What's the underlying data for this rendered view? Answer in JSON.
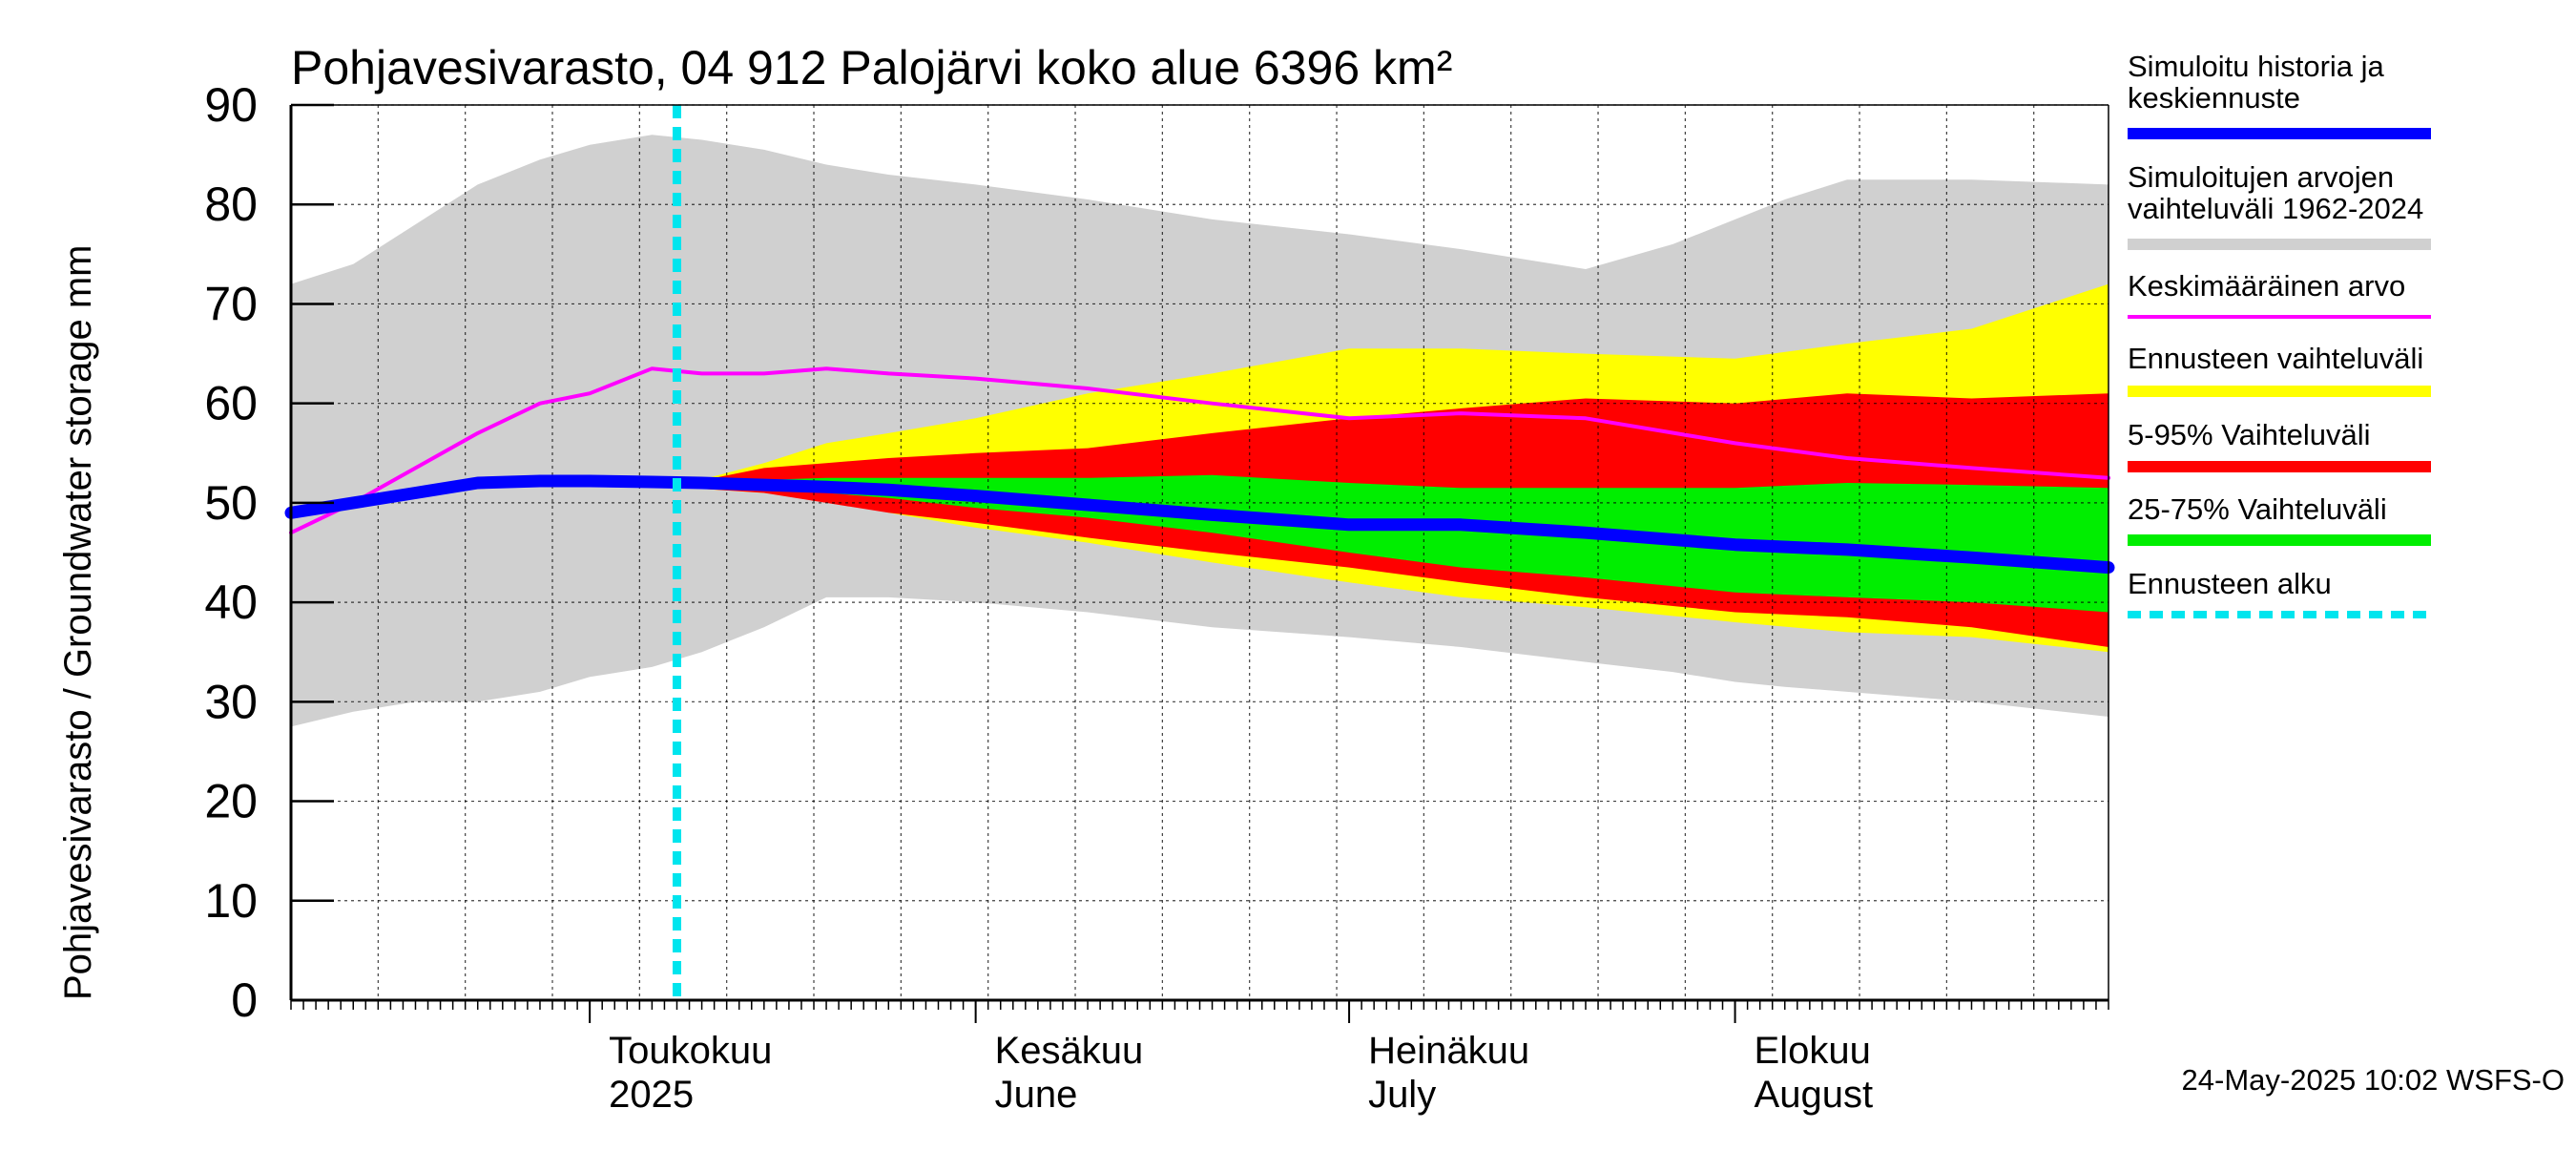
{
  "chart_data": {
    "type": "area",
    "title": "Pohjavesivarasto, 04 912 Palojärvi koko alue 6396 km²",
    "ylabel": "Pohjavesivarasto / Groundwater storage   mm",
    "ylim": [
      0,
      90
    ],
    "yticks": [
      "0",
      "10",
      "20",
      "30",
      "40",
      "50",
      "60",
      "70",
      "80",
      "90"
    ],
    "xlim": [
      "2025-04-07",
      "2025-08-31"
    ],
    "grid": true,
    "month_labels": [
      {
        "date": "2025-05-01",
        "line1": "Toukokuu",
        "line2": "2025"
      },
      {
        "date": "2025-06-01",
        "line1": "Kesäkuu",
        "line2": "June"
      },
      {
        "date": "2025-07-01",
        "line1": "Heinäkuu",
        "line2": "July"
      },
      {
        "date": "2025-08-01",
        "line1": "Elokuu",
        "line2": "August"
      }
    ],
    "forecast_start": "2025-05-08",
    "series": [
      {
        "name": "Simuloitujen arvojen vaihteluväli 1962-2024",
        "color": "#d0d0d0",
        "x": [
          "2025-04-07",
          "2025-04-12",
          "2025-04-17",
          "2025-04-22",
          "2025-04-27",
          "2025-05-01",
          "2025-05-06",
          "2025-05-10",
          "2025-05-15",
          "2025-05-20",
          "2025-05-25",
          "2025-06-01",
          "2025-06-10",
          "2025-06-20",
          "2025-07-01",
          "2025-07-10",
          "2025-07-20",
          "2025-07-27",
          "2025-08-01",
          "2025-08-05",
          "2025-08-10",
          "2025-08-20",
          "2025-08-31"
        ],
        "upper": [
          72,
          74,
          78,
          82,
          84.5,
          86,
          87,
          86.5,
          85.5,
          84,
          83,
          82,
          80.5,
          78.5,
          77,
          75.5,
          73.5,
          76,
          78.5,
          80.5,
          82.5,
          82.5,
          82
        ],
        "lower": [
          27.5,
          29,
          30,
          30,
          31,
          32.5,
          33.5,
          35,
          37.5,
          40.5,
          40.5,
          40,
          39,
          37.5,
          36.5,
          35.5,
          34,
          33,
          32,
          31.5,
          31,
          30,
          28.5
        ]
      },
      {
        "name": "Ennusteen vaihteluväli",
        "color": "#ffff00",
        "x": [
          "2025-05-09",
          "2025-05-15",
          "2025-05-20",
          "2025-05-25",
          "2025-06-01",
          "2025-06-10",
          "2025-06-20",
          "2025-07-01",
          "2025-07-10",
          "2025-07-20",
          "2025-08-01",
          "2025-08-10",
          "2025-08-20",
          "2025-08-31"
        ],
        "upper": [
          52,
          54,
          56,
          57,
          58.5,
          61,
          63,
          65.5,
          65.5,
          65,
          64.5,
          66,
          67.5,
          72
        ],
        "lower": [
          51.5,
          51,
          50.5,
          49,
          47.5,
          46,
          44,
          42,
          40.5,
          39.5,
          38,
          37,
          36.5,
          35
        ]
      },
      {
        "name": "5-95% Vaihteluväli",
        "color": "#ff0000",
        "x": [
          "2025-05-09",
          "2025-05-15",
          "2025-05-20",
          "2025-05-25",
          "2025-06-01",
          "2025-06-10",
          "2025-06-20",
          "2025-07-01",
          "2025-07-10",
          "2025-07-20",
          "2025-08-01",
          "2025-08-10",
          "2025-08-20",
          "2025-08-31"
        ],
        "upper": [
          52,
          53.5,
          54,
          54.5,
          55,
          55.5,
          57,
          58.5,
          59.5,
          60.5,
          60,
          61,
          60.5,
          61
        ],
        "lower": [
          51.5,
          51,
          50,
          49,
          48,
          46.5,
          45,
          43.5,
          42,
          40.5,
          39,
          38.5,
          37.5,
          35.5
        ]
      },
      {
        "name": "25-75% Vaihteluväli",
        "color": "#00ee00",
        "x": [
          "2025-05-09",
          "2025-05-15",
          "2025-05-20",
          "2025-05-25",
          "2025-06-01",
          "2025-06-10",
          "2025-06-20",
          "2025-07-01",
          "2025-07-10",
          "2025-07-20",
          "2025-08-01",
          "2025-08-10",
          "2025-08-20",
          "2025-08-31"
        ],
        "upper": [
          52,
          52.3,
          52.5,
          52.5,
          52.5,
          52.5,
          52.8,
          52,
          51.5,
          51.5,
          51.5,
          52,
          51.8,
          51.5
        ],
        "lower": [
          51.5,
          51.3,
          51,
          50.5,
          49.5,
          48.5,
          47,
          45,
          43.5,
          42.5,
          41,
          40.5,
          40,
          39
        ]
      },
      {
        "name": "Keskimääräinen arvo",
        "color": "#ff00ff",
        "x": [
          "2025-04-07",
          "2025-04-12",
          "2025-04-17",
          "2025-04-22",
          "2025-04-27",
          "2025-05-01",
          "2025-05-06",
          "2025-05-10",
          "2025-05-15",
          "2025-05-20",
          "2025-05-25",
          "2025-06-01",
          "2025-06-10",
          "2025-06-20",
          "2025-07-01",
          "2025-07-10",
          "2025-07-20",
          "2025-08-01",
          "2025-08-10",
          "2025-08-20",
          "2025-08-31"
        ],
        "y": [
          47,
          50,
          53.5,
          57,
          60,
          61,
          63.5,
          63,
          63,
          63.5,
          63,
          62.5,
          61.5,
          60,
          58.5,
          59,
          58.5,
          56,
          54.5,
          53.5,
          52.5
        ]
      },
      {
        "name": "Simuloitu historia ja keskiennuste",
        "color": "#0000ff",
        "x": [
          "2025-04-07",
          "2025-04-12",
          "2025-04-17",
          "2025-04-22",
          "2025-04-27",
          "2025-05-01",
          "2025-05-06",
          "2025-05-10",
          "2025-05-15",
          "2025-05-20",
          "2025-05-25",
          "2025-06-01",
          "2025-06-10",
          "2025-06-20",
          "2025-07-01",
          "2025-07-10",
          "2025-07-20",
          "2025-08-01",
          "2025-08-10",
          "2025-08-20",
          "2025-08-31"
        ],
        "y": [
          49,
          50,
          51,
          52,
          52.2,
          52.2,
          52.1,
          52,
          51.8,
          51.6,
          51.3,
          50.7,
          49.8,
          48.8,
          47.8,
          47.8,
          47,
          45.8,
          45.3,
          44.5,
          43.5
        ]
      }
    ],
    "legend": {
      "placement": "right",
      "items": [
        {
          "label": "Simuloitu historia ja keskiennuste",
          "color": "#0000ff",
          "style": "solid"
        },
        {
          "label": "Simuloitujen arvojen vaihteluväli 1962-2024",
          "color": "#d0d0d0",
          "style": "solid"
        },
        {
          "label": "Keskimääräinen arvo",
          "color": "#ff00ff",
          "style": "solid"
        },
        {
          "label": "Ennusteen vaihteluväli",
          "color": "#ffff00",
          "style": "solid"
        },
        {
          "label": "5-95% Vaihteluväli",
          "color": "#ff0000",
          "style": "solid"
        },
        {
          "label": "25-75% Vaihteluväli",
          "color": "#00ee00",
          "style": "solid"
        },
        {
          "label": "Ennusteen alku",
          "color": "#00e5ee",
          "style": "dashed"
        }
      ]
    },
    "footer": "24-May-2025 10:02 WSFS-O"
  }
}
